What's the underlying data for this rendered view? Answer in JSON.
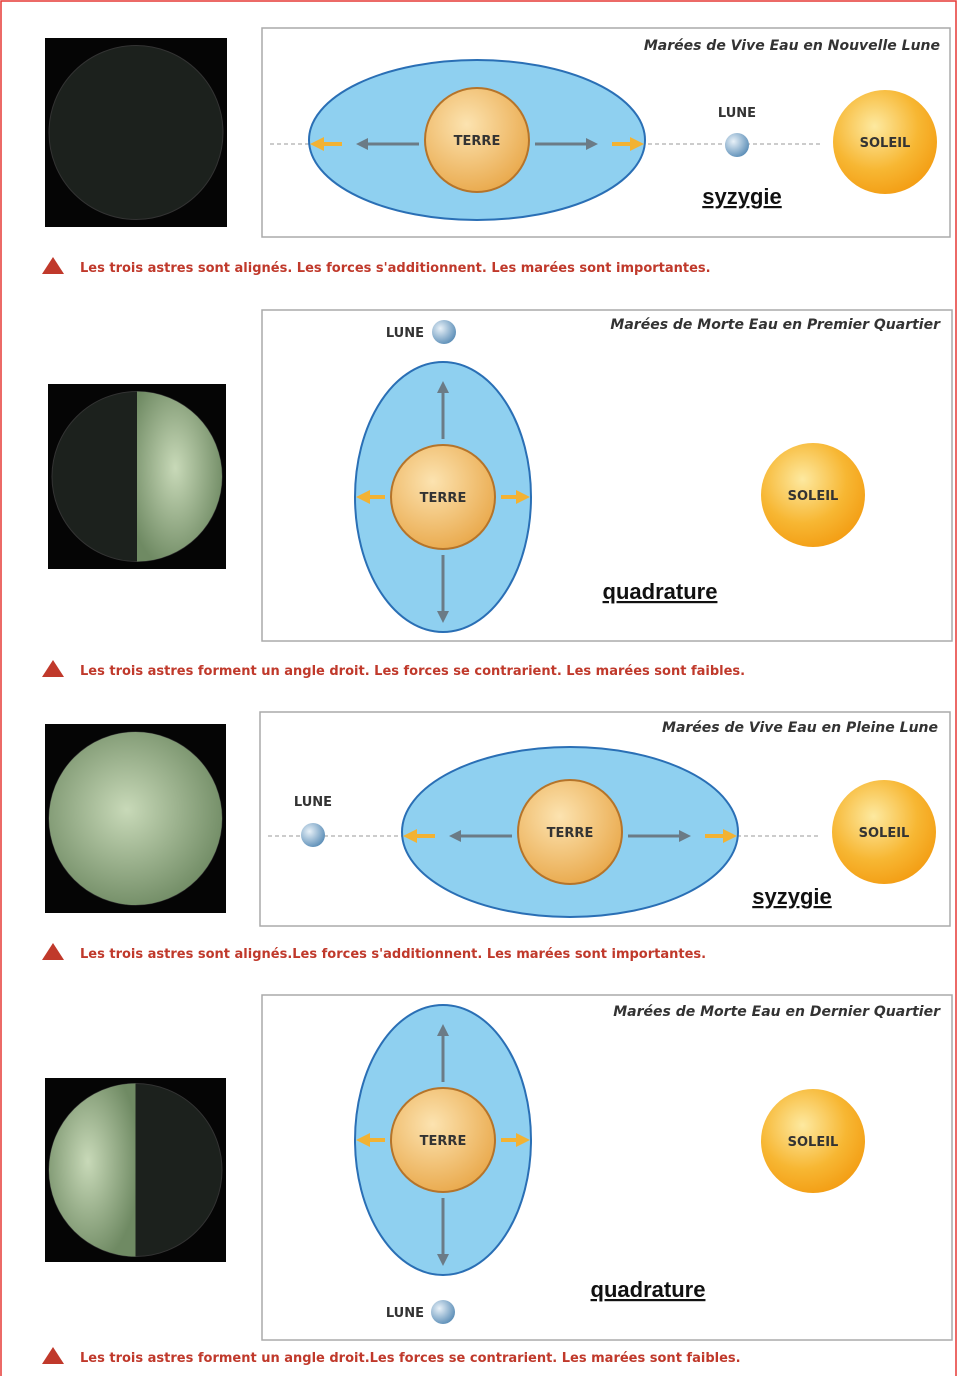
{
  "panels": [
    {
      "title": "Marées de Vive Eau en Nouvelle Lune",
      "earth": "TERRE",
      "moon": "LUNE",
      "sun": "SOLEIL",
      "alignment": "syzygie",
      "caption": "Les trois astres sont alignés. Les forces s'additionnent. Les marées sont importantes."
    },
    {
      "title": "Marées de Morte Eau en Premier Quartier",
      "earth": "TERRE",
      "moon": "LUNE",
      "sun": "SOLEIL",
      "alignment": "quadrature",
      "caption": "Les trois astres forment un angle droit. Les forces se contrarient. Les marées sont faibles."
    },
    {
      "title": "Marées de Vive Eau en Pleine Lune",
      "earth": "TERRE",
      "moon": "LUNE",
      "sun": "SOLEIL",
      "alignment": "syzygie",
      "caption": "Les trois astres sont alignés.Les forces s'additionnent. Les marées sont importantes."
    },
    {
      "title": "Marées de Morte Eau en Dernier Quartier",
      "earth": "TERRE",
      "moon": "LUNE",
      "sun": "SOLEIL",
      "alignment": "quadrature",
      "caption": "Les trois astres forment un angle droit.Les forces se contrarient. Les marées sont faibles."
    }
  ]
}
